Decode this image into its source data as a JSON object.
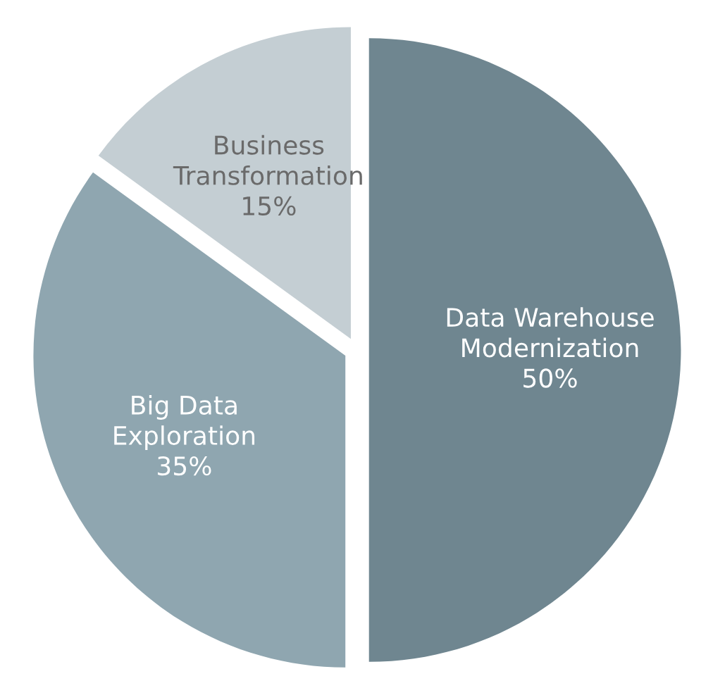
{
  "chart_data": {
    "type": "pie",
    "categories": [
      "Data Warehouse\nModernization",
      "Big Data\nExploration",
      "Business\nTransformation"
    ],
    "values": [
      50,
      35,
      15
    ],
    "colors": [
      "#6f8690",
      "#8fa6b0",
      "#c4ced3"
    ],
    "value_labels": [
      "50%",
      "35%",
      "15%"
    ]
  }
}
